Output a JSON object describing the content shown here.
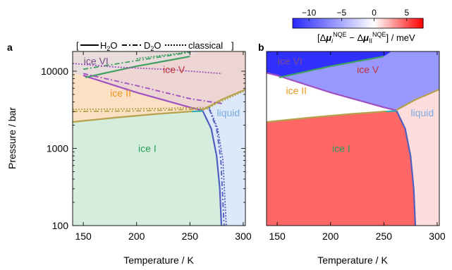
{
  "colorbar": {
    "ticks": [
      -10,
      -5,
      0,
      5
    ],
    "range": [
      -12.5,
      7.5
    ],
    "label_parts": [
      "[Δ",
      "μ",
      "i",
      "NQE",
      " − Δ",
      "μ",
      "II",
      "NQE",
      "] / meV"
    ]
  },
  "colors": {
    "ice_I": "#2aa05a",
    "ice_II": "#e8951e",
    "ice_V": "#c0303a",
    "ice_VI": "#7a4a8a",
    "liquid": "#7aaae0",
    "boundary_ice_I_II": "#b5a24a",
    "boundary_II_V": "#a050c0",
    "boundary_V_VI": "#40a060",
    "boundary_liquid": "#5060c0",
    "boundary_II_liquid": "#30b0b0",
    "fill_ice_I": "#d5eddc",
    "fill_ice_II": "#fbe0c4",
    "fill_ice_V": "#ecd5d3",
    "fill_ice_VI": "#e8dcdc",
    "fill_liquid": "#dde8f8"
  },
  "legend": {
    "open": "[",
    "close": "]",
    "entries": [
      {
        "style": "solid",
        "label_base": "H",
        "label_sub": "2",
        "label_tail": "O"
      },
      {
        "style": "dashdot",
        "label_base": "D",
        "label_sub": "2",
        "label_tail": "O"
      },
      {
        "style": "dotted",
        "label_base": "classical",
        "label_sub": "",
        "label_tail": ""
      }
    ]
  },
  "chart_data": [
    {
      "panel": "a",
      "type": "area",
      "xlabel": "Temperature / K",
      "ylabel": "Pressure / bar",
      "xlim": [
        140,
        302
      ],
      "ylim": [
        100,
        18000
      ],
      "yscale": "log",
      "xticks": [
        150,
        200,
        250,
        300
      ],
      "yticks": [
        100,
        1000,
        10000
      ],
      "phase_labels": [
        {
          "text": "ice I",
          "phase": "ice_I",
          "x": 210,
          "y": 1000
        },
        {
          "text": "ice II",
          "phase": "ice_II",
          "x": 185,
          "y": 5200
        },
        {
          "text": "ice V",
          "phase": "ice_V",
          "x": 235,
          "y": 10500
        },
        {
          "text": "ice VI",
          "phase": "ice_VI",
          "x": 162,
          "y": 13500
        },
        {
          "text": "liquid",
          "phase": "liquid",
          "x": 286,
          "y": 2900
        }
      ],
      "boundaries": [
        {
          "style": "solid",
          "color": "boundary_ice_I_II",
          "points": [
            [
              140,
              2200
            ],
            [
              180,
              2500
            ],
            [
              220,
              2800
            ],
            [
              250,
              3000
            ],
            [
              262,
              3050
            ]
          ]
        },
        {
          "style": "solid",
          "color": "boundary_II_V",
          "points": [
            [
              150,
              8800
            ],
            [
              200,
              5300
            ],
            [
              250,
              3400
            ],
            [
              262,
              3100
            ]
          ]
        },
        {
          "style": "solid",
          "color": "boundary_V_VI",
          "points": [
            [
              152,
              8300
            ],
            [
              200,
              11600
            ],
            [
              250,
              15500
            ]
          ]
        },
        {
          "style": "solid",
          "color": "boundary_II_liquid",
          "points": [
            [
              252,
              3000
            ],
            [
              262,
              3050
            ]
          ]
        },
        {
          "style": "solid",
          "color": "boundary_ice_I_II",
          "points": [
            [
              262,
              3150
            ],
            [
              280,
              4300
            ],
            [
              302,
              5800
            ]
          ]
        },
        {
          "style": "solid",
          "color": "boundary_liquid",
          "points": [
            [
              262,
              3050
            ],
            [
              270,
              1800
            ],
            [
              275,
              800
            ],
            [
              278,
              300
            ],
            [
              279.5,
              100
            ]
          ]
        },
        {
          "style": "dashdot",
          "color": "boundary_ice_I_II",
          "points": [
            [
              140,
              3000
            ],
            [
              200,
              3050
            ],
            [
              250,
              3200
            ],
            [
              268,
              3250
            ]
          ]
        },
        {
          "style": "dashdot",
          "color": "boundary_II_V",
          "points": [
            [
              150,
              9300
            ],
            [
              200,
              6500
            ],
            [
              250,
              4400
            ],
            [
              280,
              3800
            ]
          ]
        },
        {
          "style": "dashdot",
          "color": "boundary_V_VI",
          "points": [
            [
              150,
              10600
            ],
            [
              200,
              13700
            ],
            [
              250,
              17500
            ]
          ]
        },
        {
          "style": "dashdot",
          "color": "boundary_liquid",
          "points": [
            [
              268,
              3250
            ],
            [
              275,
              1800
            ],
            [
              279,
              700
            ],
            [
              282,
              100
            ]
          ]
        },
        {
          "style": "dotted",
          "color": "boundary_ice_I_II",
          "points": [
            [
              140,
              3200
            ],
            [
              200,
              3250
            ],
            [
              250,
              3350
            ],
            [
              268,
              3400
            ]
          ]
        },
        {
          "style": "dotted",
          "color": "boundary_II_V",
          "points": [
            [
              140,
              12600
            ],
            [
              180,
              11300
            ],
            [
              230,
              10500
            ],
            [
              280,
              9300
            ]
          ]
        },
        {
          "style": "dotted",
          "color": "boundary_V_VI",
          "points": [
            [
              200,
              14500
            ],
            [
              250,
              17800
            ]
          ]
        },
        {
          "style": "dotted",
          "color": "boundary_ice_I_II",
          "points": [
            [
              268,
              3400
            ],
            [
              285,
              4400
            ],
            [
              302,
              5600
            ]
          ]
        },
        {
          "style": "dotted",
          "color": "boundary_liquid",
          "points": [
            [
              268,
              3400
            ],
            [
              276,
              1800
            ],
            [
              281,
              700
            ],
            [
              284,
              100
            ]
          ]
        }
      ]
    },
    {
      "panel": "b",
      "type": "heatmap",
      "xlabel": "Temperature / K",
      "xlim": [
        140,
        302
      ],
      "ylim": [
        100,
        18000
      ],
      "yscale": "log",
      "xticks": [
        150,
        200,
        250,
        300
      ],
      "value_unit": "meV",
      "region_values": [
        {
          "phase": "ice_I",
          "value": 4.5
        },
        {
          "phase": "ice_II",
          "value": 0
        },
        {
          "phase": "ice_V",
          "value": -6
        },
        {
          "phase": "ice_VI",
          "value": -12
        },
        {
          "phase": "liquid",
          "value": 1
        }
      ],
      "phase_labels": [
        {
          "text": "ice I",
          "phase": "ice_I",
          "x": 210,
          "y": 1000
        },
        {
          "text": "ice II",
          "phase": "ice_II",
          "x": 168,
          "y": 5600
        },
        {
          "text": "ice V",
          "phase": "ice_V",
          "x": 235,
          "y": 10500
        },
        {
          "text": "ice VI",
          "phase": "ice_VI",
          "x": 162,
          "y": 13500
        },
        {
          "text": "liquid",
          "phase": "liquid",
          "x": 286,
          "y": 2900
        }
      ],
      "boundaries": [
        {
          "style": "solid",
          "color": "boundary_ice_I_II",
          "points": [
            [
              140,
              2200
            ],
            [
              180,
              2500
            ],
            [
              220,
              2800
            ],
            [
              250,
              3000
            ],
            [
              262,
              3050
            ]
          ]
        },
        {
          "style": "solid",
          "color": "boundary_II_V",
          "points": [
            [
              140,
              9500
            ],
            [
              150,
              8800
            ],
            [
              200,
              5300
            ],
            [
              250,
              3400
            ],
            [
              262,
              3100
            ]
          ]
        },
        {
          "style": "solid",
          "color": "boundary_V_VI",
          "points": [
            [
              152,
              8300
            ],
            [
              200,
              11600
            ],
            [
              250,
              15500
            ]
          ]
        },
        {
          "style": "solid",
          "color": "boundary_II_liquid",
          "points": [
            [
              252,
              3000
            ],
            [
              262,
              3050
            ]
          ]
        },
        {
          "style": "solid",
          "color": "boundary_ice_I_II",
          "points": [
            [
              262,
              3150
            ],
            [
              280,
              4300
            ],
            [
              302,
              5800
            ]
          ]
        },
        {
          "style": "solid",
          "color": "boundary_liquid",
          "points": [
            [
              262,
              3050
            ],
            [
              270,
              1800
            ],
            [
              275,
              800
            ],
            [
              278,
              300
            ],
            [
              279.5,
              100
            ]
          ]
        }
      ]
    }
  ],
  "panels": {
    "a": {
      "label": "a",
      "xlabel": "Temperature / K",
      "ylabel": "Pressure / bar"
    },
    "b": {
      "label": "b",
      "xlabel": "Temperature / K"
    }
  }
}
